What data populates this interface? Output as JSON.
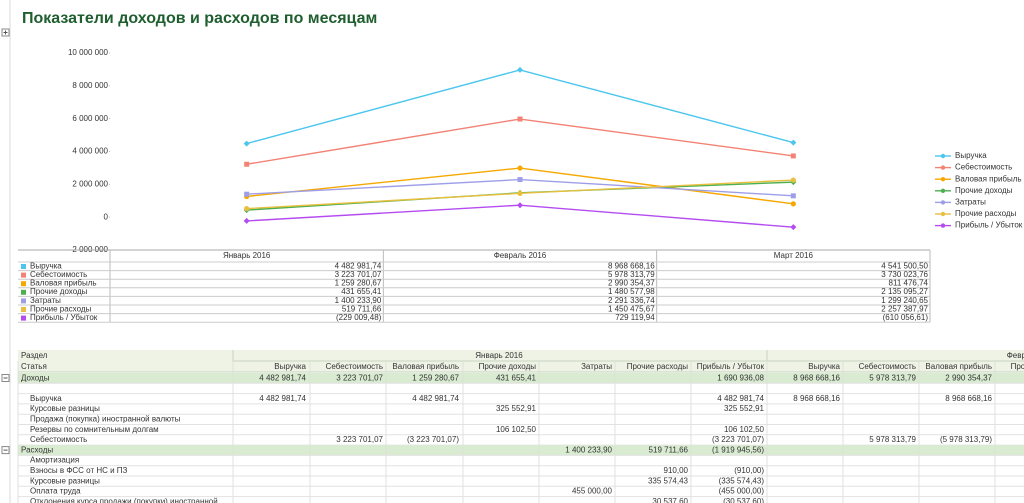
{
  "page_title": "Показатели доходов и расходов по месяцам",
  "chart_data": {
    "type": "line",
    "categories": [
      "Январь 2016",
      "Февраль 2016",
      "Март 2016"
    ],
    "ylim": [
      -2000000,
      10000000
    ],
    "yticks": [
      {
        "value": -2000000,
        "label": "-2 000 000"
      },
      0,
      {
        "value": 2000000,
        "label": "2 000 000"
      },
      {
        "value": 4000000,
        "label": "4 000 000"
      },
      {
        "value": 6000000,
        "label": "6 000 000"
      },
      {
        "value": 8000000,
        "label": "8 000 000"
      },
      {
        "value": 10000000,
        "label": "10 000 000"
      }
    ],
    "grid": false,
    "legend": "right",
    "series": [
      {
        "name": "Выручка",
        "color": "#4cc6ee",
        "values": [
          4482981.74,
          8968668.16,
          4541500.5
        ],
        "value_labels": [
          "4 482 981,74",
          "8 968 668,16",
          "4 541 500,50"
        ]
      },
      {
        "name": "Себестоимость",
        "color": "#f28374",
        "values": [
          3223701.07,
          5978313.79,
          3730023.76
        ],
        "value_labels": [
          "3 223 701,07",
          "5 978 313,79",
          "3 730 023,76"
        ]
      },
      {
        "name": "Валовая прибыль",
        "color": "#f5a800",
        "values": [
          1259280.67,
          2990354.37,
          811476.74
        ],
        "value_labels": [
          "1 259 280,67",
          "2 990 354,37",
          "811 476,74"
        ]
      },
      {
        "name": "Прочие доходы",
        "color": "#4caf50",
        "values": [
          431655.41,
          1480577.98,
          2135095.27
        ],
        "value_labels": [
          "431 655,41",
          "1 480 577,98",
          "2 135 095,27"
        ]
      },
      {
        "name": "Затраты",
        "color": "#9e9ee8",
        "values": [
          1400233.9,
          2291336.74,
          1299240.65
        ],
        "value_labels": [
          "1 400 233,90",
          "2 291 336,74",
          "1 299 240,65"
        ]
      },
      {
        "name": "Прочие расходы",
        "color": "#e8c040",
        "values": [
          519711.66,
          1450475.67,
          2257387.97
        ],
        "value_labels": [
          "519 711,66",
          "1 450 475,67",
          "2 257 387,97"
        ]
      },
      {
        "name": "Прибыль / Убыток",
        "color": "#b44cf0",
        "values": [
          -229009.48,
          729119.94,
          -610056.61
        ],
        "value_labels": [
          "(229 009,48)",
          "729 119,94",
          "(610 056,61)"
        ]
      }
    ]
  },
  "report": {
    "section_label": "Раздел",
    "item_label": "Статья",
    "periods": [
      "Январь 2016",
      "Февраль 2016"
    ],
    "columns": [
      "Выручка",
      "Себестоимость",
      "Валовая прибыль",
      "Прочие доходы",
      "Затраты",
      "Прочие расходы",
      "Прибыль / Убыток"
    ],
    "rows": [
      {
        "label": "Доходы",
        "group": true,
        "cells": [
          "4 482 981,74",
          "3 223 701,07",
          "1 259 280,67",
          "431 655,41",
          null,
          null,
          "1 690 936,08",
          "8 968 668,16",
          "5 978 313,79",
          "2 990 354,37",
          null
        ]
      },
      {
        "label": null,
        "group": false,
        "cells": [
          null,
          null,
          null,
          null,
          null,
          null,
          null,
          null,
          null,
          null,
          null
        ]
      },
      {
        "label": "Выручка",
        "group": false,
        "cells": [
          "4 482 981,74",
          null,
          "4 482 981,74",
          null,
          null,
          null,
          "4 482 981,74",
          "8 968 668,16",
          null,
          "8 968 668,16",
          null
        ]
      },
      {
        "label": "Курсовые разницы",
        "group": false,
        "cells": [
          null,
          null,
          null,
          "325 552,91",
          null,
          null,
          "325 552,91",
          null,
          null,
          null,
          null
        ]
      },
      {
        "label": "Продажа (покупка) иностранной валюты",
        "group": false,
        "cells": [
          null,
          null,
          null,
          null,
          null,
          null,
          null,
          null,
          null,
          null,
          null
        ]
      },
      {
        "label": "Резервы по сомнительным долгам",
        "group": false,
        "cells": [
          null,
          null,
          null,
          "106 102,50",
          null,
          null,
          "106 102,50",
          null,
          null,
          null,
          null
        ]
      },
      {
        "label": "Себестоимость",
        "group": false,
        "cells": [
          null,
          "3 223 701,07",
          "(3 223 701,07)",
          null,
          null,
          null,
          "(3 223 701,07)",
          null,
          "5 978 313,79",
          "(5 978 313,79)",
          null
        ]
      },
      {
        "label": "Расходы",
        "group": true,
        "cells": [
          null,
          null,
          null,
          null,
          "1 400 233,90",
          "519 711,66",
          "(1 919 945,56)",
          null,
          null,
          null,
          null
        ]
      },
      {
        "label": "Амортизация",
        "group": false,
        "cells": [
          null,
          null,
          null,
          null,
          null,
          null,
          null,
          null,
          null,
          null,
          null
        ]
      },
      {
        "label": "Взносы в ФСС от НС и ПЗ",
        "group": false,
        "cells": [
          null,
          null,
          null,
          null,
          null,
          "910,00",
          "(910,00)",
          null,
          null,
          null,
          null
        ]
      },
      {
        "label": "Курсовые разницы",
        "group": false,
        "cells": [
          null,
          null,
          null,
          null,
          null,
          "335 574,43",
          "(335 574,43)",
          null,
          null,
          null,
          null
        ]
      },
      {
        "label": "Оплата труда",
        "group": false,
        "cells": [
          null,
          null,
          null,
          null,
          "455 000,00",
          null,
          "(455 000,00)",
          null,
          null,
          null,
          null
        ]
      },
      {
        "label": "Отклонения курса продажи (покупки) иностранной",
        "group": false,
        "cells": [
          null,
          null,
          null,
          null,
          null,
          "30 537,60",
          "(30 537,60)",
          null,
          null,
          null,
          null
        ]
      }
    ]
  }
}
